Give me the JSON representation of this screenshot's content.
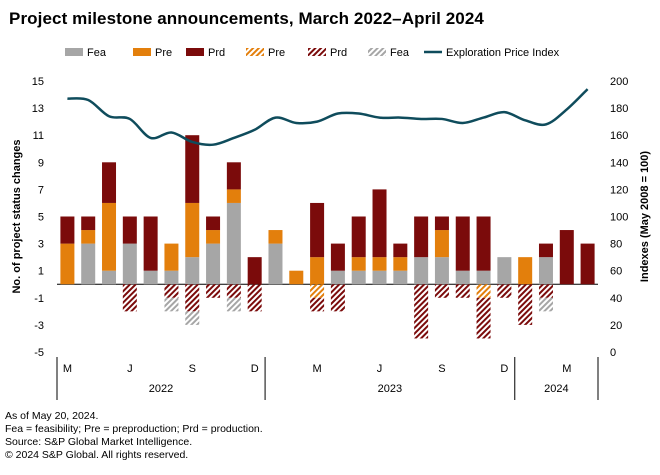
{
  "title": "Project milestone announcements, March 2022–April 2024",
  "notes": [
    "As of May 20, 2024.",
    "Fea = feasibility; Pre = preproduction; Prd = production.",
    "Source: S&P Global Market Intelligence.",
    "© 2024 S&P Global. All rights reserved."
  ],
  "colors": {
    "fea": "#a6a6a6",
    "pre": "#e37f0c",
    "prd": "#7b0b0b",
    "line": "#0f4c5c",
    "axis": "#000000"
  },
  "chart_data": {
    "type": "bar",
    "stacked": true,
    "ylabel": "No. of project status changes",
    "y2label": "Indexes (May 2008 = 100)",
    "ylim": [
      -5,
      15
    ],
    "yticks": [
      "15",
      "13",
      "11",
      "9",
      "7",
      "5",
      "3",
      "1",
      "-1",
      "-3",
      "-5"
    ],
    "y2lim": [
      0,
      200
    ],
    "y2ticks": [
      "200",
      "180",
      "160",
      "140",
      "120",
      "100",
      "80",
      "60",
      "40",
      "20",
      "0"
    ],
    "month_labels": [
      {
        "label": "M",
        "index": 0
      },
      {
        "label": "J",
        "index": 3
      },
      {
        "label": "S",
        "index": 6
      },
      {
        "label": "D",
        "index": 9
      },
      {
        "label": "M",
        "index": 12
      },
      {
        "label": "J",
        "index": 15
      },
      {
        "label": "S",
        "index": 18
      },
      {
        "label": "D",
        "index": 21
      },
      {
        "label": "M",
        "index": 24
      }
    ],
    "year_labels": [
      {
        "label": "2022",
        "start": 0,
        "end": 9
      },
      {
        "label": "2023",
        "start": 10,
        "end": 21
      },
      {
        "label": "2024",
        "start": 22,
        "end": 25
      }
    ],
    "categories": [
      "Mar-22",
      "Apr-22",
      "May-22",
      "Jun-22",
      "Jul-22",
      "Aug-22",
      "Sep-22",
      "Oct-22",
      "Nov-22",
      "Dec-22",
      "Jan-23",
      "Feb-23",
      "Mar-23",
      "Apr-23",
      "May-23",
      "Jun-23",
      "Jul-23",
      "Aug-23",
      "Sep-23",
      "Oct-23",
      "Nov-23",
      "Dec-23",
      "Jan-24",
      "Feb-24",
      "Mar-24",
      "Apr-24"
    ],
    "legend": [
      {
        "label": "Fea",
        "kind": "fea",
        "style": "solid"
      },
      {
        "label": "Pre",
        "kind": "pre",
        "style": "solid"
      },
      {
        "label": "Prd",
        "kind": "prd",
        "style": "solid"
      },
      {
        "label": "Pre",
        "kind": "pre",
        "style": "hatch"
      },
      {
        "label": "Prd",
        "kind": "prd",
        "style": "hatch"
      },
      {
        "label": "Fea",
        "kind": "fea",
        "style": "hatch"
      },
      {
        "label": "Exploration Price Index",
        "kind": "line",
        "style": "line"
      }
    ],
    "series": [
      {
        "name": "Fea",
        "kind": "fea",
        "style": "solid",
        "values": [
          0,
          3,
          1,
          3,
          1,
          1,
          2,
          3,
          6,
          0,
          3,
          0,
          0,
          1,
          1,
          1,
          1,
          2,
          2,
          1,
          1,
          2,
          0,
          2,
          0,
          0
        ]
      },
      {
        "name": "Pre",
        "kind": "pre",
        "style": "solid",
        "values": [
          3,
          1,
          5,
          0,
          0,
          2,
          4,
          1,
          1,
          0,
          1,
          1,
          2,
          0,
          1,
          1,
          1,
          0,
          2,
          0,
          0,
          0,
          2,
          0,
          0,
          0
        ]
      },
      {
        "name": "Prd",
        "kind": "prd",
        "style": "solid",
        "values": [
          2,
          1,
          3,
          2,
          4,
          0,
          5,
          1,
          2,
          2,
          0,
          0,
          4,
          2,
          3,
          5,
          1,
          3,
          1,
          4,
          4,
          0,
          0,
          1,
          4,
          3
        ]
      },
      {
        "name": "Pre",
        "kind": "pre",
        "style": "hatch",
        "values": [
          0,
          0,
          0,
          0,
          0,
          0,
          0,
          0,
          0,
          0,
          0,
          0,
          1,
          0,
          0,
          0,
          0,
          0,
          0,
          0,
          1,
          0,
          0,
          0,
          0,
          0
        ]
      },
      {
        "name": "Prd",
        "kind": "prd",
        "style": "hatch",
        "values": [
          0,
          0,
          0,
          2,
          0,
          1,
          2,
          1,
          1,
          2,
          0,
          0,
          1,
          2,
          0,
          0,
          0,
          4,
          1,
          1,
          3,
          1,
          3,
          1,
          0,
          0
        ]
      },
      {
        "name": "Fea",
        "kind": "fea",
        "style": "hatch",
        "values": [
          0,
          0,
          0,
          0,
          0,
          1,
          1,
          0,
          1,
          0,
          0,
          0,
          0,
          0,
          0,
          0,
          0,
          0,
          0,
          0,
          0,
          0,
          0,
          1,
          0,
          0
        ]
      }
    ],
    "index_line": {
      "name": "Exploration Price Index",
      "axis": "right",
      "values": [
        187,
        186,
        174,
        172,
        158,
        162,
        155,
        153,
        158,
        164,
        173,
        169,
        170,
        176,
        176,
        173,
        173,
        172,
        172,
        169,
        173,
        177,
        171,
        168,
        179,
        194
      ]
    }
  }
}
